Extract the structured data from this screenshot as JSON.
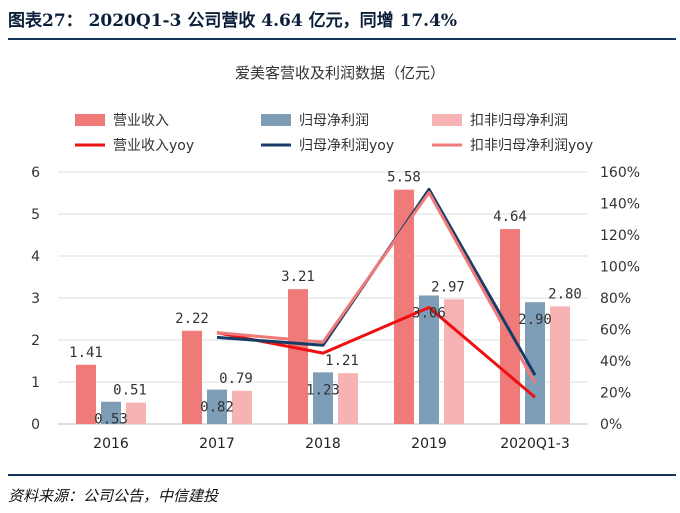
{
  "figure": {
    "title": "图表27： 2020Q1-3 公司营收 4.64 亿元，同增 17.4%",
    "source": "资料来源：公司公告，中信建投"
  },
  "chart_data": {
    "type": "bar",
    "title": "爱美客营收及利润数据（亿元）",
    "categories": [
      "2016",
      "2017",
      "2018",
      "2019",
      "2020Q1-3"
    ],
    "bars": [
      {
        "name": "营业收入",
        "color": "#f07a7a",
        "values": [
          1.41,
          2.22,
          3.21,
          5.58,
          4.64
        ],
        "labels": [
          "1.41",
          "2.22",
          "3.21",
          "5.58",
          "4.64"
        ]
      },
      {
        "name": "归母净利润",
        "color": "#7e9eb8",
        "values": [
          0.53,
          0.82,
          1.23,
          3.06,
          2.9
        ],
        "labels": [
          "0.53",
          "0.82",
          "1.23",
          "3.06",
          "2.90"
        ]
      },
      {
        "name": "扣非归母净利润",
        "color": "#f7b3b3",
        "values": [
          0.51,
          0.79,
          1.21,
          2.97,
          2.8
        ],
        "labels": [
          "0.51",
          "0.79",
          "1.21",
          "2.97",
          "2.80"
        ]
      }
    ],
    "lines": [
      {
        "name": "营业收入yoy",
        "color": "#ee1111",
        "values": [
          null,
          58,
          45,
          74,
          17
        ]
      },
      {
        "name": "归母净利润yoy",
        "color": "#173d66",
        "values": [
          null,
          55,
          50,
          149,
          31
        ]
      },
      {
        "name": "扣非归母净利润yoy",
        "color": "#f07a7a",
        "values": [
          null,
          58,
          52,
          147,
          26
        ]
      }
    ],
    "left_axis": {
      "min": 0,
      "max": 6,
      "ticks": [
        "0",
        "1",
        "2",
        "3",
        "4",
        "5",
        "6"
      ]
    },
    "right_axis": {
      "min": 0,
      "max": 160,
      "ticks": [
        "0%",
        "20%",
        "40%",
        "60%",
        "80%",
        "100%",
        "120%",
        "140%",
        "160%"
      ]
    },
    "grid": true,
    "legend_position": "top"
  }
}
